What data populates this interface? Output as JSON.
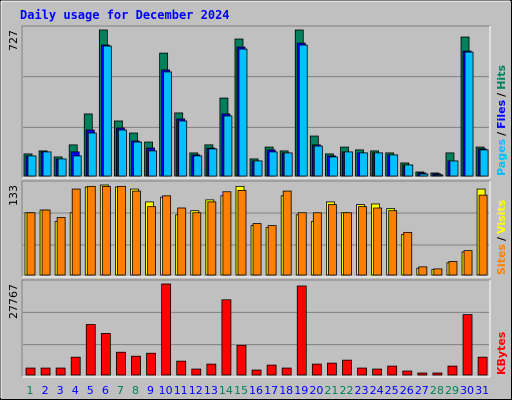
{
  "chart_data": [
    {
      "type": "bar",
      "title": "Daily usage for December 2024",
      "title_color": "#0000ff",
      "ylim": [
        0,
        727
      ],
      "yticks": [
        727
      ],
      "legend_separator": "/",
      "series": [
        {
          "name": "Pages",
          "color": "#00c0ff",
          "values": [
            100,
            120,
            85,
            100,
            214,
            647,
            229,
            169,
            125,
            518,
            274,
            100,
            135,
            299,
            632,
            75,
            120,
            115,
            652,
            149,
            95,
            120,
            115,
            115,
            105,
            55,
            10,
            5,
            75,
            617,
            130
          ]
        },
        {
          "name": "Files",
          "color": "#0000ff",
          "values": [
            100,
            120,
            85,
            120,
            229,
            652,
            239,
            174,
            139,
            528,
            284,
            105,
            139,
            309,
            642,
            75,
            130,
            115,
            662,
            155,
            100,
            120,
            115,
            115,
            105,
            55,
            15,
            10,
            75,
            622,
            135
          ]
        },
        {
          "name": "Hits",
          "color": "#00805c",
          "values": [
            110,
            125,
            95,
            155,
            309,
            727,
            274,
            214,
            169,
            612,
            314,
            115,
            155,
            388,
            682,
            85,
            144,
            125,
            727,
            199,
            110,
            144,
            130,
            125,
            115,
            65,
            20,
            15,
            115,
            692,
            144
          ]
        }
      ]
    },
    {
      "type": "bar",
      "ylim": [
        0,
        133
      ],
      "yticks": [
        133
      ],
      "legend_separator": "/",
      "series": [
        {
          "name": "Sites",
          "color": "#ff8000",
          "values": [
            92,
            96,
            85,
            127,
            131,
            131,
            131,
            124,
            101,
            117,
            99,
            92,
            108,
            123,
            125,
            76,
            73,
            124,
            92,
            92,
            104,
            92,
            101,
            99,
            95,
            63,
            12,
            9,
            20,
            36,
            118
          ]
        },
        {
          "name": "Visits",
          "color": "#ffff00",
          "values": [
            92,
            96,
            79,
            92,
            130,
            133,
            130,
            127,
            108,
            115,
            89,
            95,
            111,
            117,
            131,
            73,
            70,
            117,
            89,
            79,
            108,
            92,
            104,
            105,
            98,
            60,
            10,
            8,
            18,
            34,
            127
          ]
        }
      ]
    },
    {
      "type": "bar",
      "ylim": [
        0,
        27767
      ],
      "yticks": [
        27767
      ],
      "categories": [
        "1",
        "2",
        "3",
        "4",
        "5",
        "6",
        "7",
        "8",
        "9",
        "10",
        "11",
        "12",
        "13",
        "14",
        "15",
        "16",
        "17",
        "18",
        "19",
        "20",
        "21",
        "22",
        "23",
        "24",
        "25",
        "26",
        "27",
        "28",
        "29",
        "30",
        "31"
      ],
      "category_colors": [
        "#00805c",
        "#0000ff",
        "#0000ff",
        "#0000ff",
        "#0000ff",
        "#0000ff",
        "#00805c",
        "#00805c",
        "#0000ff",
        "#0000ff",
        "#0000ff",
        "#0000ff",
        "#0000ff",
        "#00805c",
        "#00805c",
        "#0000ff",
        "#0000ff",
        "#0000ff",
        "#0000ff",
        "#0000ff",
        "#00805c",
        "#00805c",
        "#0000ff",
        "#0000ff",
        "#0000ff",
        "#0000ff",
        "#0000ff",
        "#00805c",
        "#00805c",
        "#0000ff",
        "#0000ff"
      ],
      "series": [
        {
          "name": "KBytes",
          "color": "#ff0000",
          "values": [
            2114,
            2114,
            2114,
            5434,
            15400,
            12680,
            6945,
            5735,
            6640,
            27767,
            4227,
            1812,
            3320,
            22950,
            9055,
            1510,
            3020,
            2114,
            27160,
            3320,
            3620,
            4530,
            2114,
            1812,
            2716,
            1208,
            604,
            604,
            2716,
            18420,
            5434
          ]
        }
      ]
    }
  ]
}
